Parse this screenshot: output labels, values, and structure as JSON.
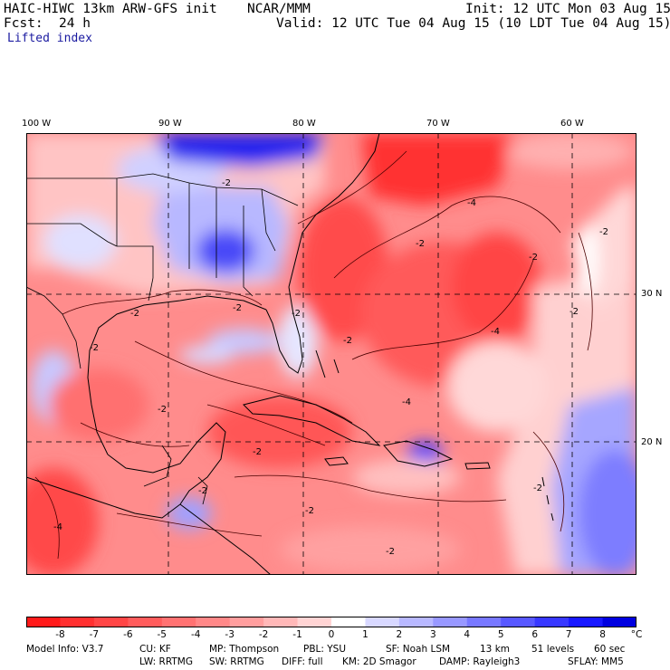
{
  "header": {
    "model": "HAIC-HIWC 13km ARW-GFS init",
    "org": "NCAR/MMM",
    "init": "Init: 12 UTC Mon 03 Aug 15",
    "fcst_label": "Fcst:",
    "fcst_value": "24 h",
    "valid": "Valid: 12 UTC Tue 04 Aug 15 (10 LDT Tue 04 Aug 15)",
    "field": "Lifted index"
  },
  "axes": {
    "lon_labels": [
      "100 W",
      "90 W",
      "80 W",
      "70 W",
      "60 W"
    ],
    "lat_labels": [
      "30 N",
      "20 N"
    ]
  },
  "colorbar": {
    "labels": [
      "-8",
      "-7",
      "-6",
      "-5",
      "-4",
      "-3",
      "-2",
      "-1",
      "0",
      "1",
      "2",
      "3",
      "4",
      "5",
      "6",
      "7",
      "8"
    ],
    "unit": "°C",
    "colors": [
      "#ff1a1a",
      "#ff3030",
      "#ff4646",
      "#ff5c5c",
      "#ff7272",
      "#ff8888",
      "#ff9e9e",
      "#ffb8b8",
      "#ffd4d4",
      "#ffffff",
      "#d8d8ff",
      "#b8b8ff",
      "#9898ff",
      "#7878ff",
      "#5858ff",
      "#3838ff",
      "#1818ff",
      "#0000e0"
    ]
  },
  "info": {
    "line1": [
      "Model Info: V3.7",
      "CU: KF",
      "MP: Thompson",
      "PBL: YSU",
      "SF: Noah LSM",
      "13 km",
      "51 levels",
      "60 sec"
    ],
    "line2": [
      "LW: RRTMG",
      "SW: RRTMG",
      "DIFF: full",
      "KM: 2D Smagor",
      "DAMP: Rayleigh3",
      "SFLAY: MM5"
    ]
  },
  "contour_labels": [
    "-2",
    "-2",
    "-4",
    "-2",
    "-4",
    "-2",
    "-2",
    "-2",
    "-2",
    "-2",
    "-2",
    "-4",
    "-2",
    "-2",
    "-4",
    "-2",
    "-2",
    "-2",
    "-2",
    "-2"
  ],
  "colors": {
    "ocean_red": "#ff8c8c",
    "deep_red": "#ff3a3a",
    "light_red": "#ffb4b4",
    "blue": "#8c8cff",
    "deep_blue": "#1e1eee",
    "pale": "#ffdcdc"
  }
}
